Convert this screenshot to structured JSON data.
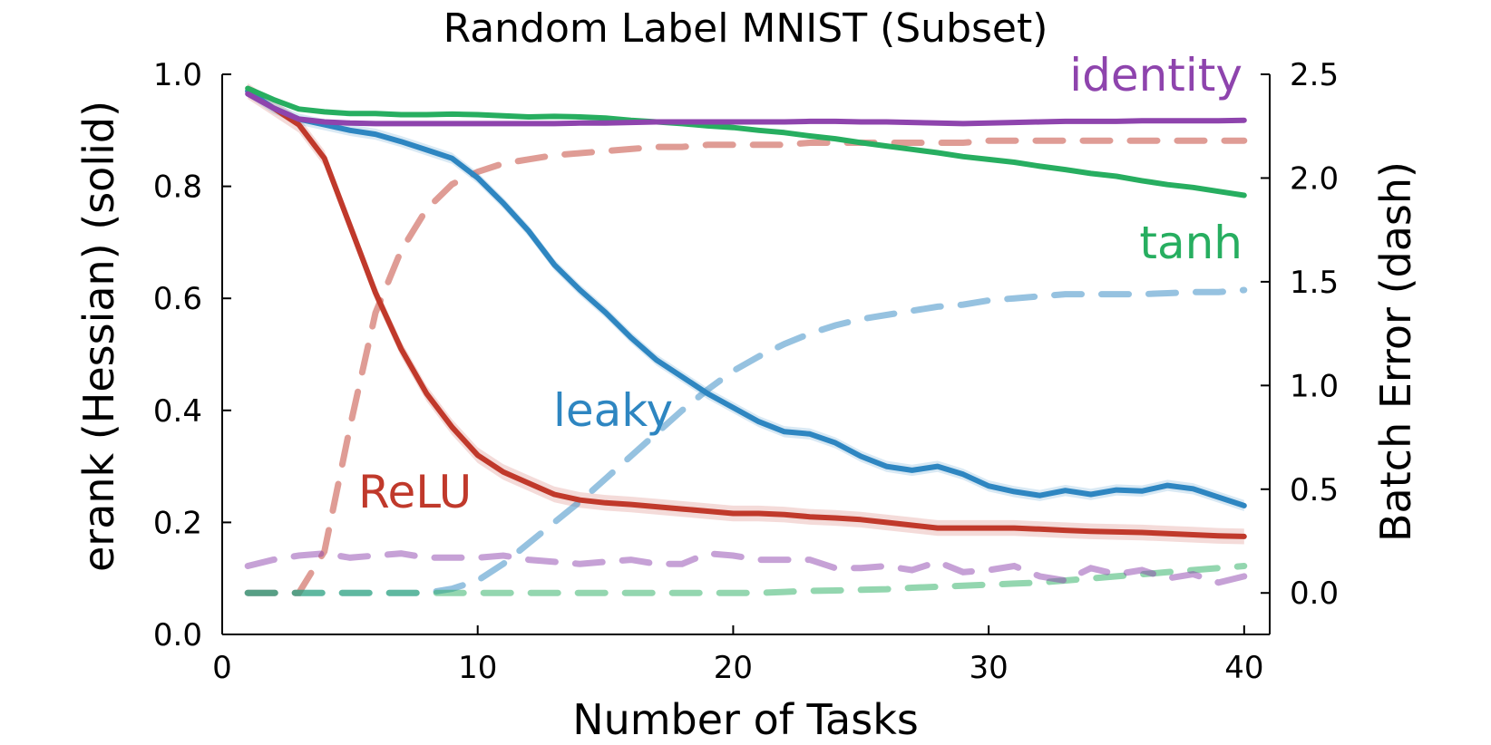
{
  "chart_data": {
    "type": "line",
    "title": "Random Label MNIST (Subset)",
    "xlabel": "Number of Tasks",
    "ylabel_left": "erank (Hessian) (solid)",
    "ylabel_right": "Batch Error (dash)",
    "xlim": [
      0,
      41
    ],
    "ylim_left": [
      0,
      1.0
    ],
    "ylim_right": [
      -0.2,
      2.5
    ],
    "x_ticks": [
      0,
      10,
      20,
      30,
      40
    ],
    "y_ticks_left": [
      0.0,
      0.2,
      0.4,
      0.6,
      0.8,
      1.0
    ],
    "y_ticks_right": [
      0.0,
      0.5,
      1.0,
      1.5,
      2.0,
      2.5
    ],
    "x": [
      1,
      2,
      3,
      4,
      5,
      6,
      7,
      8,
      9,
      10,
      11,
      12,
      13,
      14,
      15,
      16,
      17,
      18,
      19,
      20,
      21,
      22,
      23,
      24,
      25,
      26,
      27,
      28,
      29,
      30,
      31,
      32,
      33,
      34,
      35,
      36,
      37,
      38,
      39,
      40
    ],
    "series": [
      {
        "name": "ReLU",
        "color": "#c0392b",
        "erank": [
          0.97,
          0.94,
          0.91,
          0.85,
          0.73,
          0.61,
          0.51,
          0.43,
          0.37,
          0.32,
          0.29,
          0.27,
          0.25,
          0.24,
          0.235,
          0.232,
          0.228,
          0.224,
          0.22,
          0.216,
          0.216,
          0.214,
          0.21,
          0.208,
          0.205,
          0.2,
          0.195,
          0.19,
          0.19,
          0.19,
          0.19,
          0.188,
          0.186,
          0.184,
          0.183,
          0.182,
          0.18,
          0.178,
          0.176,
          0.175
        ],
        "batch_error": [
          0.0,
          0.0,
          0.0,
          0.2,
          0.8,
          1.35,
          1.65,
          1.85,
          1.97,
          2.03,
          2.07,
          2.09,
          2.11,
          2.12,
          2.13,
          2.14,
          2.15,
          2.15,
          2.16,
          2.16,
          2.16,
          2.16,
          2.17,
          2.17,
          2.17,
          2.17,
          2.17,
          2.17,
          2.17,
          2.18,
          2.18,
          2.18,
          2.18,
          2.18,
          2.18,
          2.18,
          2.18,
          2.18,
          2.18,
          2.18
        ]
      },
      {
        "name": "leaky",
        "color": "#2e86c1",
        "erank": [
          0.97,
          0.94,
          0.92,
          0.91,
          0.9,
          0.893,
          0.88,
          0.865,
          0.85,
          0.815,
          0.77,
          0.72,
          0.66,
          0.615,
          0.575,
          0.53,
          0.49,
          0.46,
          0.43,
          0.405,
          0.38,
          0.362,
          0.358,
          0.342,
          0.318,
          0.3,
          0.293,
          0.3,
          0.286,
          0.265,
          0.255,
          0.248,
          0.257,
          0.25,
          0.258,
          0.256,
          0.266,
          0.26,
          0.245,
          0.23
        ],
        "batch_error": [
          0.0,
          0.0,
          0.0,
          0.0,
          0.0,
          0.0,
          0.0,
          0.0,
          0.02,
          0.06,
          0.14,
          0.24,
          0.34,
          0.44,
          0.55,
          0.66,
          0.77,
          0.88,
          0.98,
          1.07,
          1.14,
          1.2,
          1.25,
          1.29,
          1.32,
          1.34,
          1.36,
          1.38,
          1.39,
          1.41,
          1.42,
          1.43,
          1.44,
          1.44,
          1.44,
          1.44,
          1.445,
          1.45,
          1.45,
          1.46
        ]
      },
      {
        "name": "tanh",
        "color": "#27ae60",
        "erank": [
          0.975,
          0.955,
          0.938,
          0.933,
          0.93,
          0.93,
          0.928,
          0.928,
          0.929,
          0.928,
          0.926,
          0.924,
          0.925,
          0.924,
          0.922,
          0.918,
          0.915,
          0.912,
          0.908,
          0.905,
          0.9,
          0.896,
          0.89,
          0.885,
          0.878,
          0.872,
          0.866,
          0.86,
          0.853,
          0.848,
          0.843,
          0.836,
          0.83,
          0.823,
          0.818,
          0.81,
          0.803,
          0.798,
          0.791,
          0.784
        ],
        "batch_error": [
          0.0,
          0.0,
          0.0,
          0.0,
          0.0,
          0.0,
          0.0,
          0.0,
          0.0,
          0.0,
          0.0,
          0.0,
          0.0,
          0.0,
          0.0,
          0.0,
          0.0,
          0.0,
          0.0,
          0.0,
          0.0,
          0.005,
          0.01,
          0.012,
          0.015,
          0.018,
          0.025,
          0.03,
          0.035,
          0.04,
          0.045,
          0.05,
          0.06,
          0.07,
          0.08,
          0.09,
          0.1,
          0.11,
          0.12,
          0.13
        ]
      },
      {
        "name": "identity",
        "color": "#8e44ad",
        "erank": [
          0.965,
          0.94,
          0.92,
          0.915,
          0.913,
          0.912,
          0.912,
          0.912,
          0.912,
          0.912,
          0.912,
          0.912,
          0.912,
          0.913,
          0.913,
          0.914,
          0.915,
          0.915,
          0.915,
          0.915,
          0.915,
          0.915,
          0.916,
          0.916,
          0.915,
          0.915,
          0.914,
          0.913,
          0.912,
          0.913,
          0.914,
          0.915,
          0.916,
          0.916,
          0.916,
          0.917,
          0.917,
          0.917,
          0.917,
          0.918
        ],
        "batch_error": [
          0.13,
          0.16,
          0.18,
          0.19,
          0.17,
          0.18,
          0.19,
          0.17,
          0.17,
          0.17,
          0.18,
          0.16,
          0.15,
          0.14,
          0.15,
          0.16,
          0.14,
          0.14,
          0.19,
          0.18,
          0.16,
          0.16,
          0.16,
          0.12,
          0.12,
          0.13,
          0.11,
          0.15,
          0.1,
          0.11,
          0.13,
          0.08,
          0.06,
          0.12,
          0.09,
          0.11,
          0.07,
          0.09,
          0.05,
          0.08
        ]
      }
    ],
    "series_labels": [
      "ReLU",
      "leaky",
      "tanh",
      "identity"
    ],
    "legend": "inline labels",
    "grid": false
  }
}
